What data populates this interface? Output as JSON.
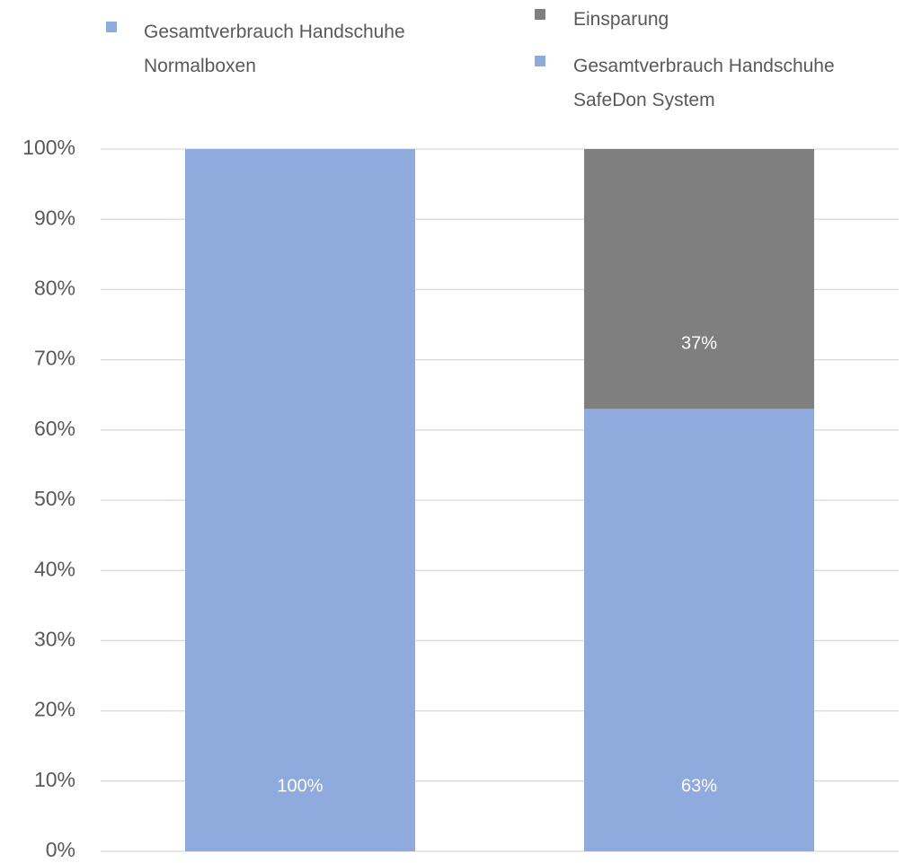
{
  "chart_data": {
    "type": "stacked_bar",
    "categories": [
      null,
      null
    ],
    "series": [
      {
        "name": "Gesamtverbrauch Handschuhe Normalboxen",
        "color": "#8faadc",
        "values": [
          100,
          null
        ],
        "value_labels": [
          "100%",
          null
        ]
      },
      {
        "name": "Gesamtverbrauch Handschuhe SafeDon System",
        "color": "#8faadc",
        "values": [
          null,
          63
        ],
        "value_labels": [
          null,
          "63%"
        ]
      },
      {
        "name": "Einsparung",
        "color": "#7f7f7f",
        "values": [
          null,
          37
        ],
        "value_labels": [
          null,
          "37%"
        ]
      }
    ],
    "ylim": [
      0,
      100
    ],
    "yticks": [
      {
        "value": 0,
        "label": "0%"
      },
      {
        "value": 10,
        "label": "10%"
      },
      {
        "value": 20,
        "label": "20%"
      },
      {
        "value": 30,
        "label": "30%"
      },
      {
        "value": 40,
        "label": "40%"
      },
      {
        "value": 50,
        "label": "50%"
      },
      {
        "value": 60,
        "label": "60%"
      },
      {
        "value": 70,
        "label": "70%"
      },
      {
        "value": 80,
        "label": "80%"
      },
      {
        "value": 90,
        "label": "90%"
      },
      {
        "value": 100,
        "label": "100%"
      }
    ],
    "grid": true,
    "legend": "top"
  }
}
